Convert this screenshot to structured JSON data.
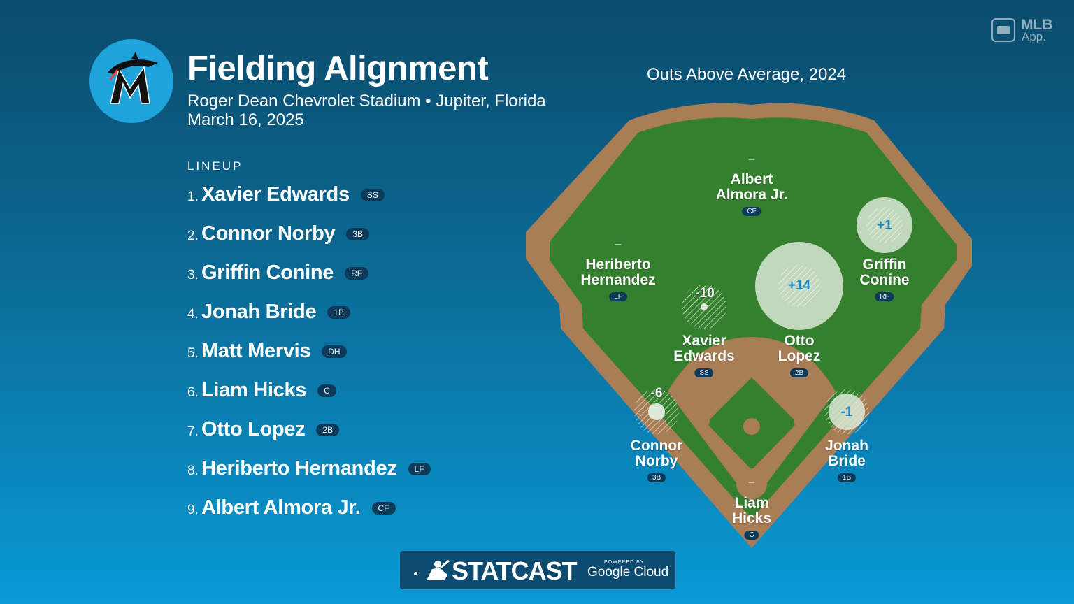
{
  "header": {
    "title": "Fielding Alignment",
    "venue": "Roger Dean Chevrolet Stadium • Jupiter, Florida",
    "date": "March 16, 2025",
    "chart_title": "Outs Above Average, 2024",
    "team_logo_icon": "marlins-logo-icon",
    "app_badge": {
      "line1": "MLB",
      "line2": "App."
    }
  },
  "lineup": {
    "heading": "LINEUP",
    "items": [
      {
        "num": "1.",
        "name": "Xavier Edwards",
        "pos": "SS"
      },
      {
        "num": "2.",
        "name": "Connor Norby",
        "pos": "3B"
      },
      {
        "num": "3.",
        "name": "Griffin Conine",
        "pos": "RF"
      },
      {
        "num": "4.",
        "name": "Jonah Bride",
        "pos": "1B"
      },
      {
        "num": "5.",
        "name": "Matt Mervis",
        "pos": "DH"
      },
      {
        "num": "6.",
        "name": "Liam Hicks",
        "pos": "C"
      },
      {
        "num": "7.",
        "name": "Otto Lopez",
        "pos": "2B"
      },
      {
        "num": "8.",
        "name": "Heriberto Hernandez",
        "pos": "LF"
      },
      {
        "num": "9.",
        "name": "Albert Almora Jr.",
        "pos": "CF"
      }
    ]
  },
  "field": {
    "players": [
      {
        "name_line1": "Albert",
        "name_line2": "Almora Jr.",
        "pos": "CF",
        "oaa": "–"
      },
      {
        "name_line1": "Heriberto",
        "name_line2": "Hernandez",
        "pos": "LF",
        "oaa": "–"
      },
      {
        "name_line1": "Griffin",
        "name_line2": "Conine",
        "pos": "RF",
        "oaa": "+1"
      },
      {
        "name_line1": "Xavier",
        "name_line2": "Edwards",
        "pos": "SS",
        "oaa": "-10"
      },
      {
        "name_line1": "Otto",
        "name_line2": "Lopez",
        "pos": "2B",
        "oaa": "+14"
      },
      {
        "name_line1": "Connor",
        "name_line2": "Norby",
        "pos": "3B",
        "oaa": "-6"
      },
      {
        "name_line1": "Jonah",
        "name_line2": "Bride",
        "pos": "1B",
        "oaa": "-1"
      },
      {
        "name_line1": "Liam",
        "name_line2": "Hicks",
        "pos": "C",
        "oaa": "–"
      }
    ],
    "colors": {
      "grass": "#35802f",
      "dirt": "#a97d55",
      "background": "#0b6a95"
    }
  },
  "footer": {
    "brand": "STATCAST",
    "powered_by": "POWERED BY",
    "partner": "Google Cloud",
    "brand_icon": "batter-silhouette-icon"
  }
}
